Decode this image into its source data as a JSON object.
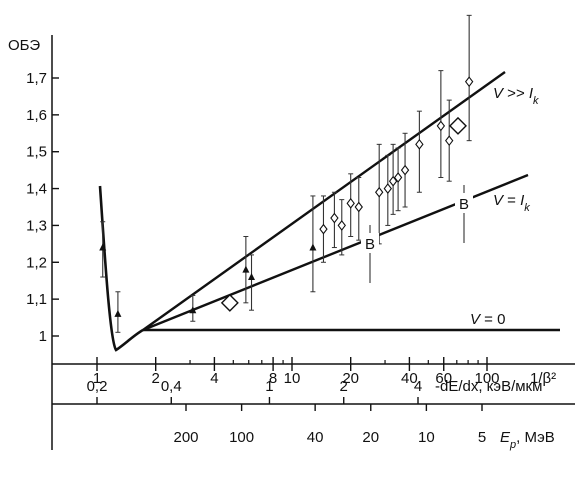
{
  "chart_data": {
    "type": "scatter",
    "ylabel": "ОБЭ",
    "y_ticks": [
      "1",
      "1,1",
      "1,2",
      "1,3",
      "1,4",
      "1,5",
      "1,6",
      "1,7"
    ],
    "y_tick_values": [
      1.0,
      1.1,
      1.2,
      1.3,
      1.4,
      1.5,
      1.6,
      1.7
    ],
    "ylim": [
      0.95,
      1.8
    ],
    "x_scale": "log",
    "x_axes": [
      {
        "label": "1/β²",
        "ticks": [
          "1",
          "2",
          "4",
          "8",
          "10",
          "20",
          "40",
          "60",
          "100"
        ],
        "tick_values": [
          1,
          2,
          4,
          8,
          10,
          20,
          40,
          60,
          100
        ]
      },
      {
        "label": "-dE/dx, кэВ/мкм",
        "ticks": [
          "0,2",
          "0,4",
          "1",
          "2",
          "4"
        ],
        "tick_values": [
          0.2,
          0.4,
          1,
          2,
          4
        ]
      },
      {
        "label": "E_p, МэВ",
        "ticks": [
          "200",
          "100",
          "40",
          "20",
          "10",
          "5"
        ],
        "tick_values": [
          200,
          100,
          40,
          20,
          10,
          5
        ]
      }
    ],
    "curve_labels": {
      "high": "V >> I_k",
      "equal": "V = I_k",
      "zero": "V = 0"
    },
    "marker_label": "B",
    "series": [
      {
        "marker": "triangle",
        "points": [
          {
            "x": 1.07,
            "y": 1.24,
            "lo": 1.16,
            "hi": 1.31
          },
          {
            "x": 1.28,
            "y": 1.06,
            "lo": 1.01,
            "hi": 1.12
          },
          {
            "x": 3.1,
            "y": 1.07,
            "lo": 1.04,
            "hi": 1.11
          },
          {
            "x": 5.8,
            "y": 1.18,
            "lo": 1.09,
            "hi": 1.27
          },
          {
            "x": 6.2,
            "y": 1.16,
            "lo": 1.07,
            "hi": 1.22
          },
          {
            "x": 12.8,
            "y": 1.24,
            "lo": 1.12,
            "hi": 1.38
          }
        ]
      },
      {
        "marker": "diamond",
        "points": [
          {
            "x": 14.5,
            "y": 1.29,
            "lo": 1.2,
            "hi": 1.38
          },
          {
            "x": 16.5,
            "y": 1.32,
            "lo": 1.24,
            "hi": 1.39
          },
          {
            "x": 18.0,
            "y": 1.3,
            "lo": 1.22,
            "hi": 1.37
          },
          {
            "x": 20.0,
            "y": 1.36,
            "lo": 1.27,
            "hi": 1.44
          },
          {
            "x": 22.0,
            "y": 1.35,
            "lo": 1.26,
            "hi": 1.43
          },
          {
            "x": 28.0,
            "y": 1.39,
            "lo": 1.25,
            "hi": 1.52
          },
          {
            "x": 31.0,
            "y": 1.4,
            "lo": 1.3,
            "hi": 1.49
          },
          {
            "x": 33.0,
            "y": 1.42,
            "lo": 1.33,
            "hi": 1.52
          },
          {
            "x": 35.0,
            "y": 1.43,
            "lo": 1.34,
            "hi": 1.51
          },
          {
            "x": 38.0,
            "y": 1.45,
            "lo": 1.35,
            "hi": 1.55
          },
          {
            "x": 45.0,
            "y": 1.52,
            "lo": 1.39,
            "hi": 1.61
          },
          {
            "x": 58.0,
            "y": 1.57,
            "lo": 1.43,
            "hi": 1.72
          },
          {
            "x": 64.0,
            "y": 1.53,
            "lo": 1.42,
            "hi": 1.64
          },
          {
            "x": 81.0,
            "y": 1.69,
            "lo": 1.53,
            "hi": 1.87
          }
        ]
      },
      {
        "marker": "large-diamond",
        "points": [
          {
            "x": 4.8,
            "y": 1.09
          },
          {
            "x": 71.0,
            "y": 1.57
          }
        ]
      }
    ]
  }
}
